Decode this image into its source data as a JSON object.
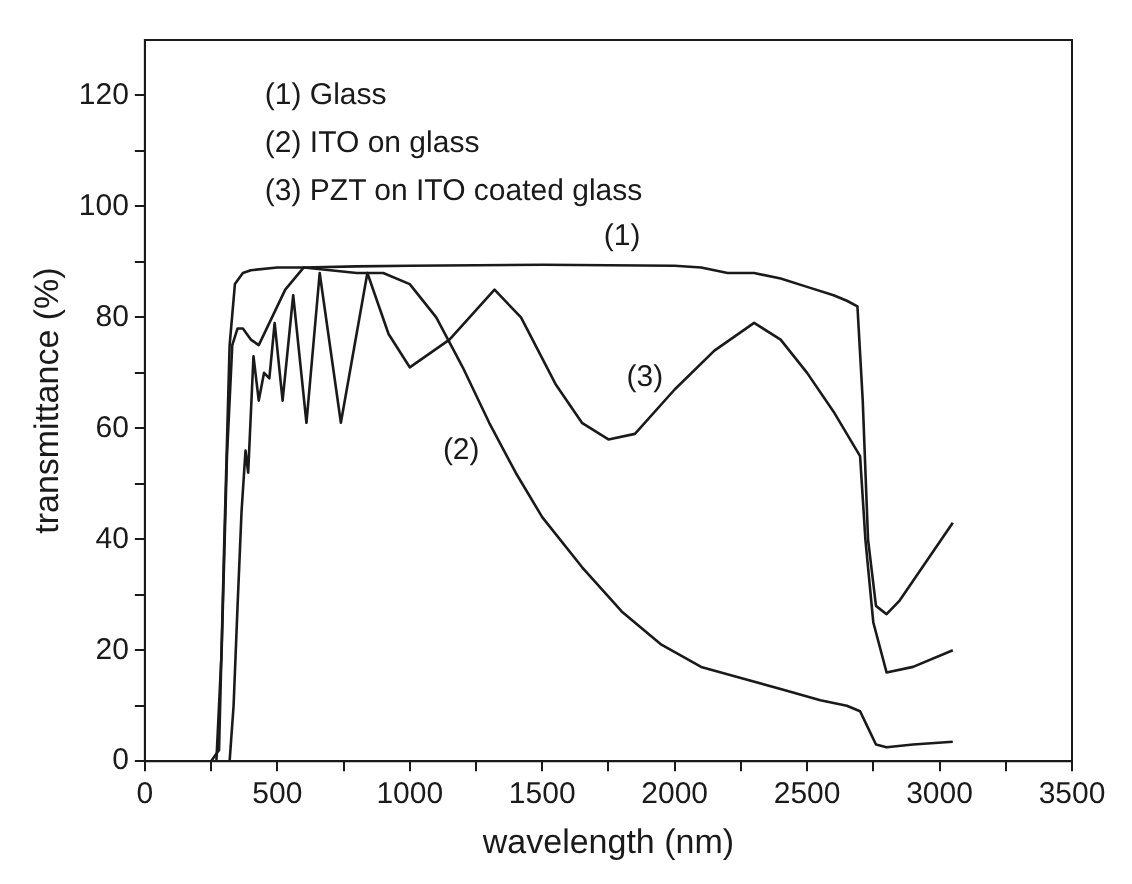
{
  "chart_data": {
    "type": "line",
    "xlabel": "wavelength (nm)",
    "ylabel": "transmittance (%)",
    "annotations": [
      "(1) Glass",
      "(2) ITO on glass",
      "(3) PZT on ITO coated glass"
    ],
    "xlim": [
      0,
      3500
    ],
    "ylim": [
      0,
      130
    ],
    "xticks": [
      0,
      {
        "value": 250,
        "label": null
      },
      500,
      {
        "value": 750,
        "label": null
      },
      1000,
      {
        "value": 1250,
        "label": null
      },
      1500,
      {
        "value": 1750,
        "label": null
      },
      2000,
      {
        "value": 2250,
        "label": null
      },
      2500,
      {
        "value": 2750,
        "label": null
      },
      3000,
      {
        "value": 3250,
        "label": null
      },
      3500
    ],
    "yticks": [
      0,
      {
        "value": 10,
        "label": null
      },
      20,
      {
        "value": 30,
        "label": null
      },
      40,
      {
        "value": 50,
        "label": null
      },
      60,
      {
        "value": 70,
        "label": null
      },
      80,
      {
        "value": 90,
        "label": null
      },
      100,
      {
        "value": 110,
        "label": null
      },
      120
    ],
    "grid": false,
    "marker": "none",
    "line_style": "solid",
    "legend": false,
    "series": [
      {
        "name": "(1)",
        "color": "#1a1a1a",
        "x": [
          250,
          280,
          300,
          320,
          340,
          370,
          400,
          500,
          600,
          800,
          1000,
          1500,
          2000,
          2100,
          2200,
          2300,
          2400,
          2500,
          2600,
          2650,
          2690,
          2710,
          2730,
          2760,
          2800,
          2850,
          2950,
          3050
        ],
        "values": [
          0,
          2,
          40,
          75,
          86,
          88,
          88.5,
          89,
          89,
          89.2,
          89.3,
          89.5,
          89.3,
          89,
          88,
          88,
          87,
          85.5,
          84,
          83,
          82,
          65,
          40,
          28,
          26.5,
          29,
          36,
          43
        ]
      },
      {
        "name": "(2)",
        "color": "#1a1a1a",
        "x": [
          250,
          270,
          290,
          310,
          330,
          350,
          370,
          400,
          430,
          480,
          530,
          600,
          700,
          800,
          900,
          1000,
          1100,
          1200,
          1300,
          1400,
          1500,
          1650,
          1800,
          1950,
          2100,
          2250,
          2400,
          2550,
          2650,
          2700,
          2730,
          2760,
          2800,
          2900,
          3050
        ],
        "values": [
          0,
          0,
          20,
          55,
          75,
          78,
          78,
          76,
          75,
          80,
          85,
          89,
          88.5,
          88,
          88,
          86,
          80,
          71,
          61,
          52,
          44,
          35,
          27,
          21,
          17,
          15,
          13,
          11,
          10,
          9,
          6,
          3,
          2.5,
          3,
          3.5
        ]
      },
      {
        "name": "(3)",
        "color": "#1a1a1a",
        "x": [
          320,
          335,
          350,
          365,
          380,
          390,
          410,
          430,
          450,
          470,
          490,
          520,
          560,
          610,
          660,
          740,
          840,
          920,
          1000,
          1150,
          1320,
          1420,
          1550,
          1650,
          1750,
          1850,
          2000,
          2150,
          2300,
          2400,
          2500,
          2600,
          2650,
          2700,
          2720,
          2750,
          2800,
          2900,
          3050
        ],
        "values": [
          0,
          10,
          28,
          45,
          56,
          52,
          73,
          65,
          70,
          69,
          79,
          65,
          84,
          61,
          88,
          61,
          88,
          77,
          71,
          76,
          85,
          80,
          68,
          61,
          58,
          59,
          67,
          74,
          79,
          76,
          70,
          63,
          59,
          55,
          40,
          25,
          16,
          17,
          20
        ]
      }
    ]
  }
}
